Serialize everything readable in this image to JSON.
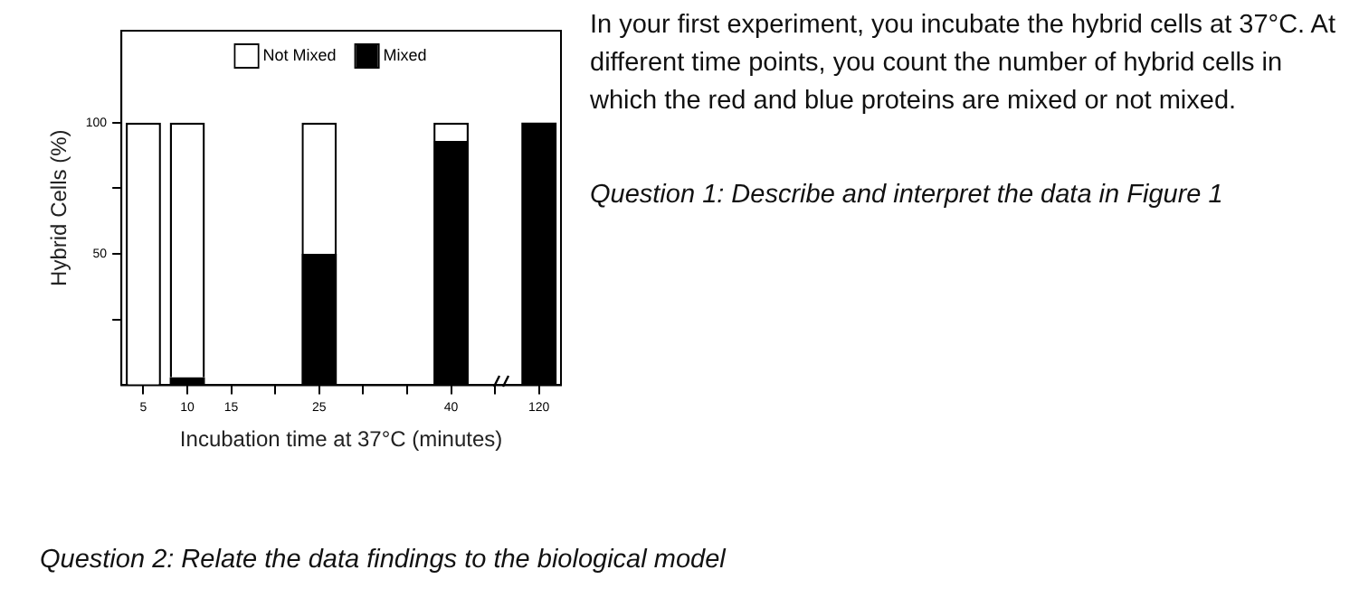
{
  "chart_data": {
    "type": "bar",
    "stacked": true,
    "xlabel": "Incubation time at 37°C (minutes)",
    "ylabel": "Hybrid Cells (%)",
    "categories": [
      "5",
      "10",
      "15",
      null,
      "25",
      null,
      null,
      "40",
      null,
      "120"
    ],
    "series": [
      {
        "name": "Mixed",
        "color": "#000000",
        "values": [
          0,
          3,
          null,
          null,
          50,
          null,
          null,
          93,
          null,
          100
        ]
      },
      {
        "name": "Not Mixed",
        "color": "#ffffff",
        "values": [
          100,
          97,
          null,
          null,
          50,
          null,
          null,
          7,
          null,
          0
        ]
      }
    ],
    "ylim": [
      0,
      135
    ],
    "yticks": [
      {
        "value": 25,
        "label": null
      },
      50,
      {
        "value": 75,
        "label": null
      },
      100
    ],
    "legend": "top",
    "grid": false,
    "annotations": [
      "In your first experiment, you incubate the hybrid cells at 37°C. At different time points, you count the number of hybrid cells in which the red and blue proteins are mixed or not mixed.",
      "Question 1: Describe and interpret the data in Figure 1",
      "Question 2: Relate the data findings to the biological model"
    ]
  }
}
